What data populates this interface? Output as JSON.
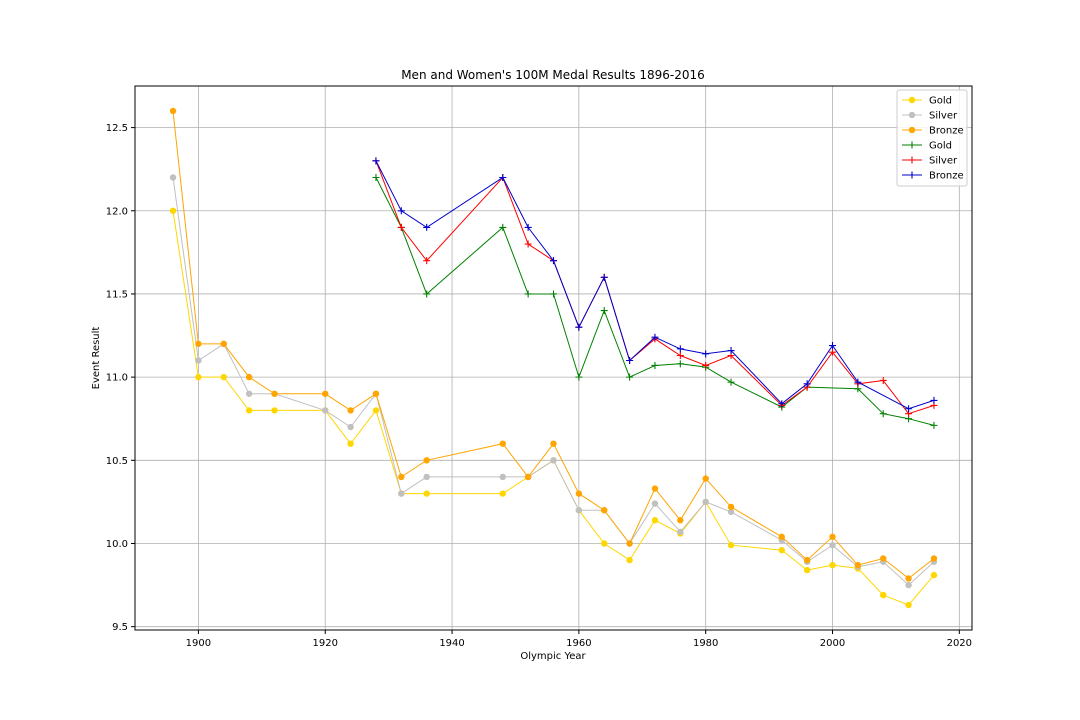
{
  "chart_data": {
    "type": "line",
    "title": "Men and Women's 100M Medal Results 1896-2016",
    "xlabel": "Olympic Year",
    "ylabel": "Event Result",
    "xlim": [
      1890,
      2022
    ],
    "ylim": [
      9.48,
      12.75
    ],
    "xticks": [
      1900,
      1920,
      1940,
      1960,
      1980,
      2000,
      2020
    ],
    "yticks": [
      9.5,
      10.0,
      10.5,
      11.0,
      11.5,
      12.0,
      12.5
    ],
    "ytick_labels": [
      "9.5",
      "10.0",
      "10.5",
      "11.0",
      "11.5",
      "12.0",
      "12.5"
    ],
    "grid": true,
    "legend_position": "top-right",
    "series": [
      {
        "name": "Gold",
        "group": "men",
        "marker": "circle",
        "color": "#ffd700",
        "x": [
          1896,
          1900,
          1904,
          1908,
          1912,
          1920,
          1924,
          1928,
          1932,
          1936,
          1948,
          1952,
          1956,
          1960,
          1964,
          1968,
          1972,
          1976,
          1980,
          1984,
          1992,
          1996,
          2000,
          2004,
          2008,
          2012,
          2016
        ],
        "y": [
          12.0,
          11.0,
          11.0,
          10.8,
          10.8,
          10.8,
          10.6,
          10.8,
          10.3,
          10.3,
          10.3,
          10.4,
          10.5,
          10.2,
          10.0,
          9.9,
          10.14,
          10.06,
          10.25,
          9.99,
          9.96,
          9.84,
          9.87,
          9.85,
          9.69,
          9.63,
          9.81
        ]
      },
      {
        "name": "Silver",
        "group": "men",
        "marker": "circle",
        "color": "#c0c0c0",
        "x": [
          1896,
          1900,
          1904,
          1908,
          1912,
          1920,
          1924,
          1928,
          1932,
          1936,
          1948,
          1952,
          1956,
          1960,
          1964,
          1968,
          1972,
          1976,
          1980,
          1984,
          1992,
          1996,
          2000,
          2004,
          2008,
          2012,
          2016
        ],
        "y": [
          12.2,
          11.1,
          11.2,
          10.9,
          10.9,
          10.8,
          10.7,
          10.9,
          10.3,
          10.4,
          10.4,
          10.4,
          10.5,
          10.2,
          10.2,
          10.0,
          10.24,
          10.07,
          10.25,
          10.19,
          10.02,
          9.89,
          9.99,
          9.86,
          9.89,
          9.75,
          9.89
        ]
      },
      {
        "name": "Bronze",
        "group": "men",
        "marker": "circle",
        "color": "#ffa500",
        "x": [
          1896,
          1900,
          1904,
          1908,
          1912,
          1920,
          1924,
          1928,
          1932,
          1936,
          1948,
          1952,
          1956,
          1960,
          1964,
          1968,
          1972,
          1976,
          1980,
          1984,
          1992,
          1996,
          2000,
          2004,
          2008,
          2012,
          2016
        ],
        "y": [
          12.6,
          11.2,
          11.2,
          11.0,
          10.9,
          10.9,
          10.8,
          10.9,
          10.4,
          10.5,
          10.6,
          10.4,
          10.6,
          10.3,
          10.2,
          10.0,
          10.33,
          10.14,
          10.39,
          10.22,
          10.04,
          9.9,
          10.04,
          9.87,
          9.91,
          9.79,
          9.91
        ]
      },
      {
        "name": "Gold",
        "group": "women",
        "marker": "plus",
        "color": "#008000",
        "x": [
          1928,
          1932,
          1936,
          1948,
          1952,
          1956,
          1960,
          1964,
          1968,
          1972,
          1976,
          1980,
          1984,
          1992,
          1996,
          2004,
          2008,
          2012,
          2016
        ],
        "y": [
          12.2,
          11.9,
          11.5,
          11.9,
          11.5,
          11.5,
          11.0,
          11.4,
          11.0,
          11.07,
          11.08,
          11.06,
          10.97,
          10.82,
          10.94,
          10.93,
          10.78,
          10.75,
          10.71
        ]
      },
      {
        "name": "Silver",
        "group": "women",
        "marker": "plus",
        "color": "#ff0000",
        "x": [
          1928,
          1932,
          1936,
          1948,
          1952,
          1956,
          1960,
          1964,
          1968,
          1972,
          1976,
          1980,
          1984,
          1992,
          1996,
          2000,
          2004,
          2008,
          2012,
          2016
        ],
        "y": [
          12.3,
          11.9,
          11.7,
          12.2,
          11.8,
          11.7,
          11.3,
          11.6,
          11.1,
          11.23,
          11.13,
          11.07,
          11.13,
          10.83,
          10.94,
          11.15,
          10.96,
          10.98,
          10.78,
          10.83
        ]
      },
      {
        "name": "Bronze",
        "group": "women",
        "marker": "plus",
        "color": "#0000cd",
        "x": [
          1928,
          1932,
          1936,
          1948,
          1952,
          1956,
          1960,
          1964,
          1968,
          1972,
          1976,
          1980,
          1984,
          1992,
          1996,
          2000,
          2004,
          2012,
          2016
        ],
        "y": [
          12.3,
          12.0,
          11.9,
          12.2,
          11.9,
          11.7,
          11.3,
          11.6,
          11.1,
          11.24,
          11.17,
          11.14,
          11.16,
          10.84,
          10.96,
          11.19,
          10.97,
          10.81,
          10.86
        ]
      }
    ]
  }
}
